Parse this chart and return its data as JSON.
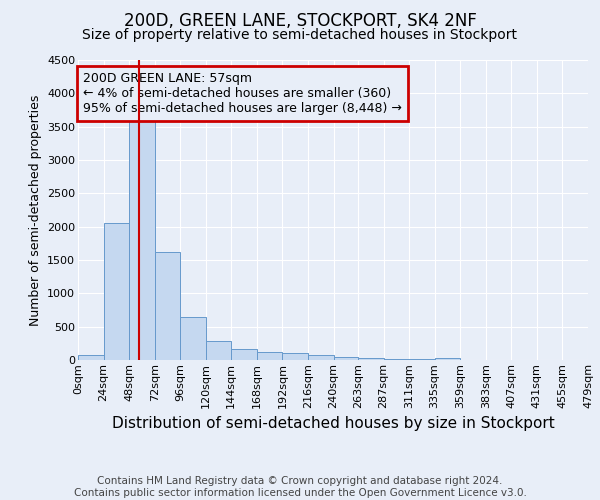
{
  "title": "200D, GREEN LANE, STOCKPORT, SK4 2NF",
  "subtitle": "Size of property relative to semi-detached houses in Stockport",
  "xlabel": "Distribution of semi-detached houses by size in Stockport",
  "ylabel": "Number of semi-detached properties",
  "bin_edges": [
    0,
    24,
    48,
    72,
    96,
    120,
    144,
    168,
    192,
    216,
    240,
    263,
    287,
    311,
    335,
    359,
    383,
    407,
    431,
    455,
    479
  ],
  "bin_counts": [
    80,
    2060,
    3750,
    1620,
    640,
    290,
    160,
    125,
    100,
    80,
    40,
    25,
    20,
    18,
    30,
    5,
    0,
    0,
    0,
    0
  ],
  "bar_color": "#c5d8f0",
  "bar_edge_color": "#6699cc",
  "ylim": [
    0,
    4500
  ],
  "property_size": 57,
  "red_line_color": "#cc0000",
  "annotation_text": "200D GREEN LANE: 57sqm\n← 4% of semi-detached houses are smaller (360)\n95% of semi-detached houses are larger (8,448) →",
  "annotation_box_color": "#cc0000",
  "footnote": "Contains HM Land Registry data © Crown copyright and database right 2024.\nContains public sector information licensed under the Open Government Licence v3.0.",
  "tick_labels": [
    "0sqm",
    "24sqm",
    "48sqm",
    "72sqm",
    "96sqm",
    "120sqm",
    "144sqm",
    "168sqm",
    "192sqm",
    "216sqm",
    "240sqm",
    "263sqm",
    "287sqm",
    "311sqm",
    "335sqm",
    "359sqm",
    "383sqm",
    "407sqm",
    "431sqm",
    "455sqm",
    "479sqm"
  ],
  "background_color": "#e8eef8",
  "grid_color": "#d0d8e8",
  "title_fontsize": 12,
  "subtitle_fontsize": 10,
  "xlabel_fontsize": 11,
  "ylabel_fontsize": 9,
  "tick_fontsize": 8,
  "footnote_fontsize": 7.5,
  "annotation_fontsize": 9
}
